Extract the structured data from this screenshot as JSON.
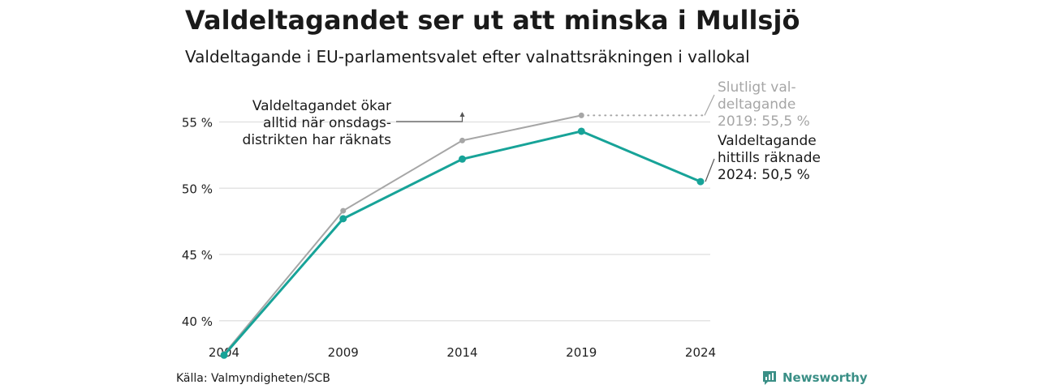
{
  "header": {
    "title": "Valdeltagandet ser ut att minska i Mullsjö",
    "subtitle": "Valdeltagande i EU-parlamentsvalet efter valnattsräkningen i vallokal"
  },
  "chart_data": {
    "type": "line",
    "title": "Valdeltagandet ser ut att minska i Mullsjö",
    "subtitle": "Valdeltagande i EU-parlamentsvalet efter valnattsräkningen i vallokal",
    "xlabel": "",
    "ylabel": "",
    "x": [
      2004,
      2009,
      2014,
      2019,
      2024
    ],
    "x_tick_labels": [
      "2004",
      "2009",
      "2014",
      "2019",
      "2024"
    ],
    "y_ticks": [
      40,
      45,
      50,
      55
    ],
    "y_tick_labels": [
      "40 %",
      "45 %",
      "50 %",
      "55 %"
    ],
    "ylim": [
      36.5,
      56.2
    ],
    "grid": true,
    "series": [
      {
        "key": "final",
        "x": [
          2004,
          2009,
          2014,
          2019
        ],
        "values": [
          37.5,
          48.3,
          53.6,
          55.5
        ],
        "color": "#a6a6a6"
      },
      {
        "key": "counted",
        "x": [
          2004,
          2009,
          2014,
          2019,
          2024
        ],
        "values": [
          37.4,
          47.7,
          52.2,
          54.3,
          50.5
        ],
        "color": "#17a398"
      }
    ],
    "annotations": {
      "final_label": [
        "Slutligt val-",
        "deltagande",
        "2019: 55,5 %"
      ],
      "counted_label": [
        "Valdeltagande",
        "hittills räknade",
        "2024: 50,5 %"
      ],
      "note": [
        "Valdeltagandet ökar",
        "alltid när onsdags-",
        "distrikten har räknats"
      ]
    }
  },
  "footer": {
    "source": "Källa: Valmyndigheten/SCB",
    "brand": "Newsworthy"
  },
  "colors": {
    "accent": "#17a398",
    "final_line": "#a6a6a6",
    "grid": "#e3e3e3",
    "brand": "#3a8f86"
  }
}
